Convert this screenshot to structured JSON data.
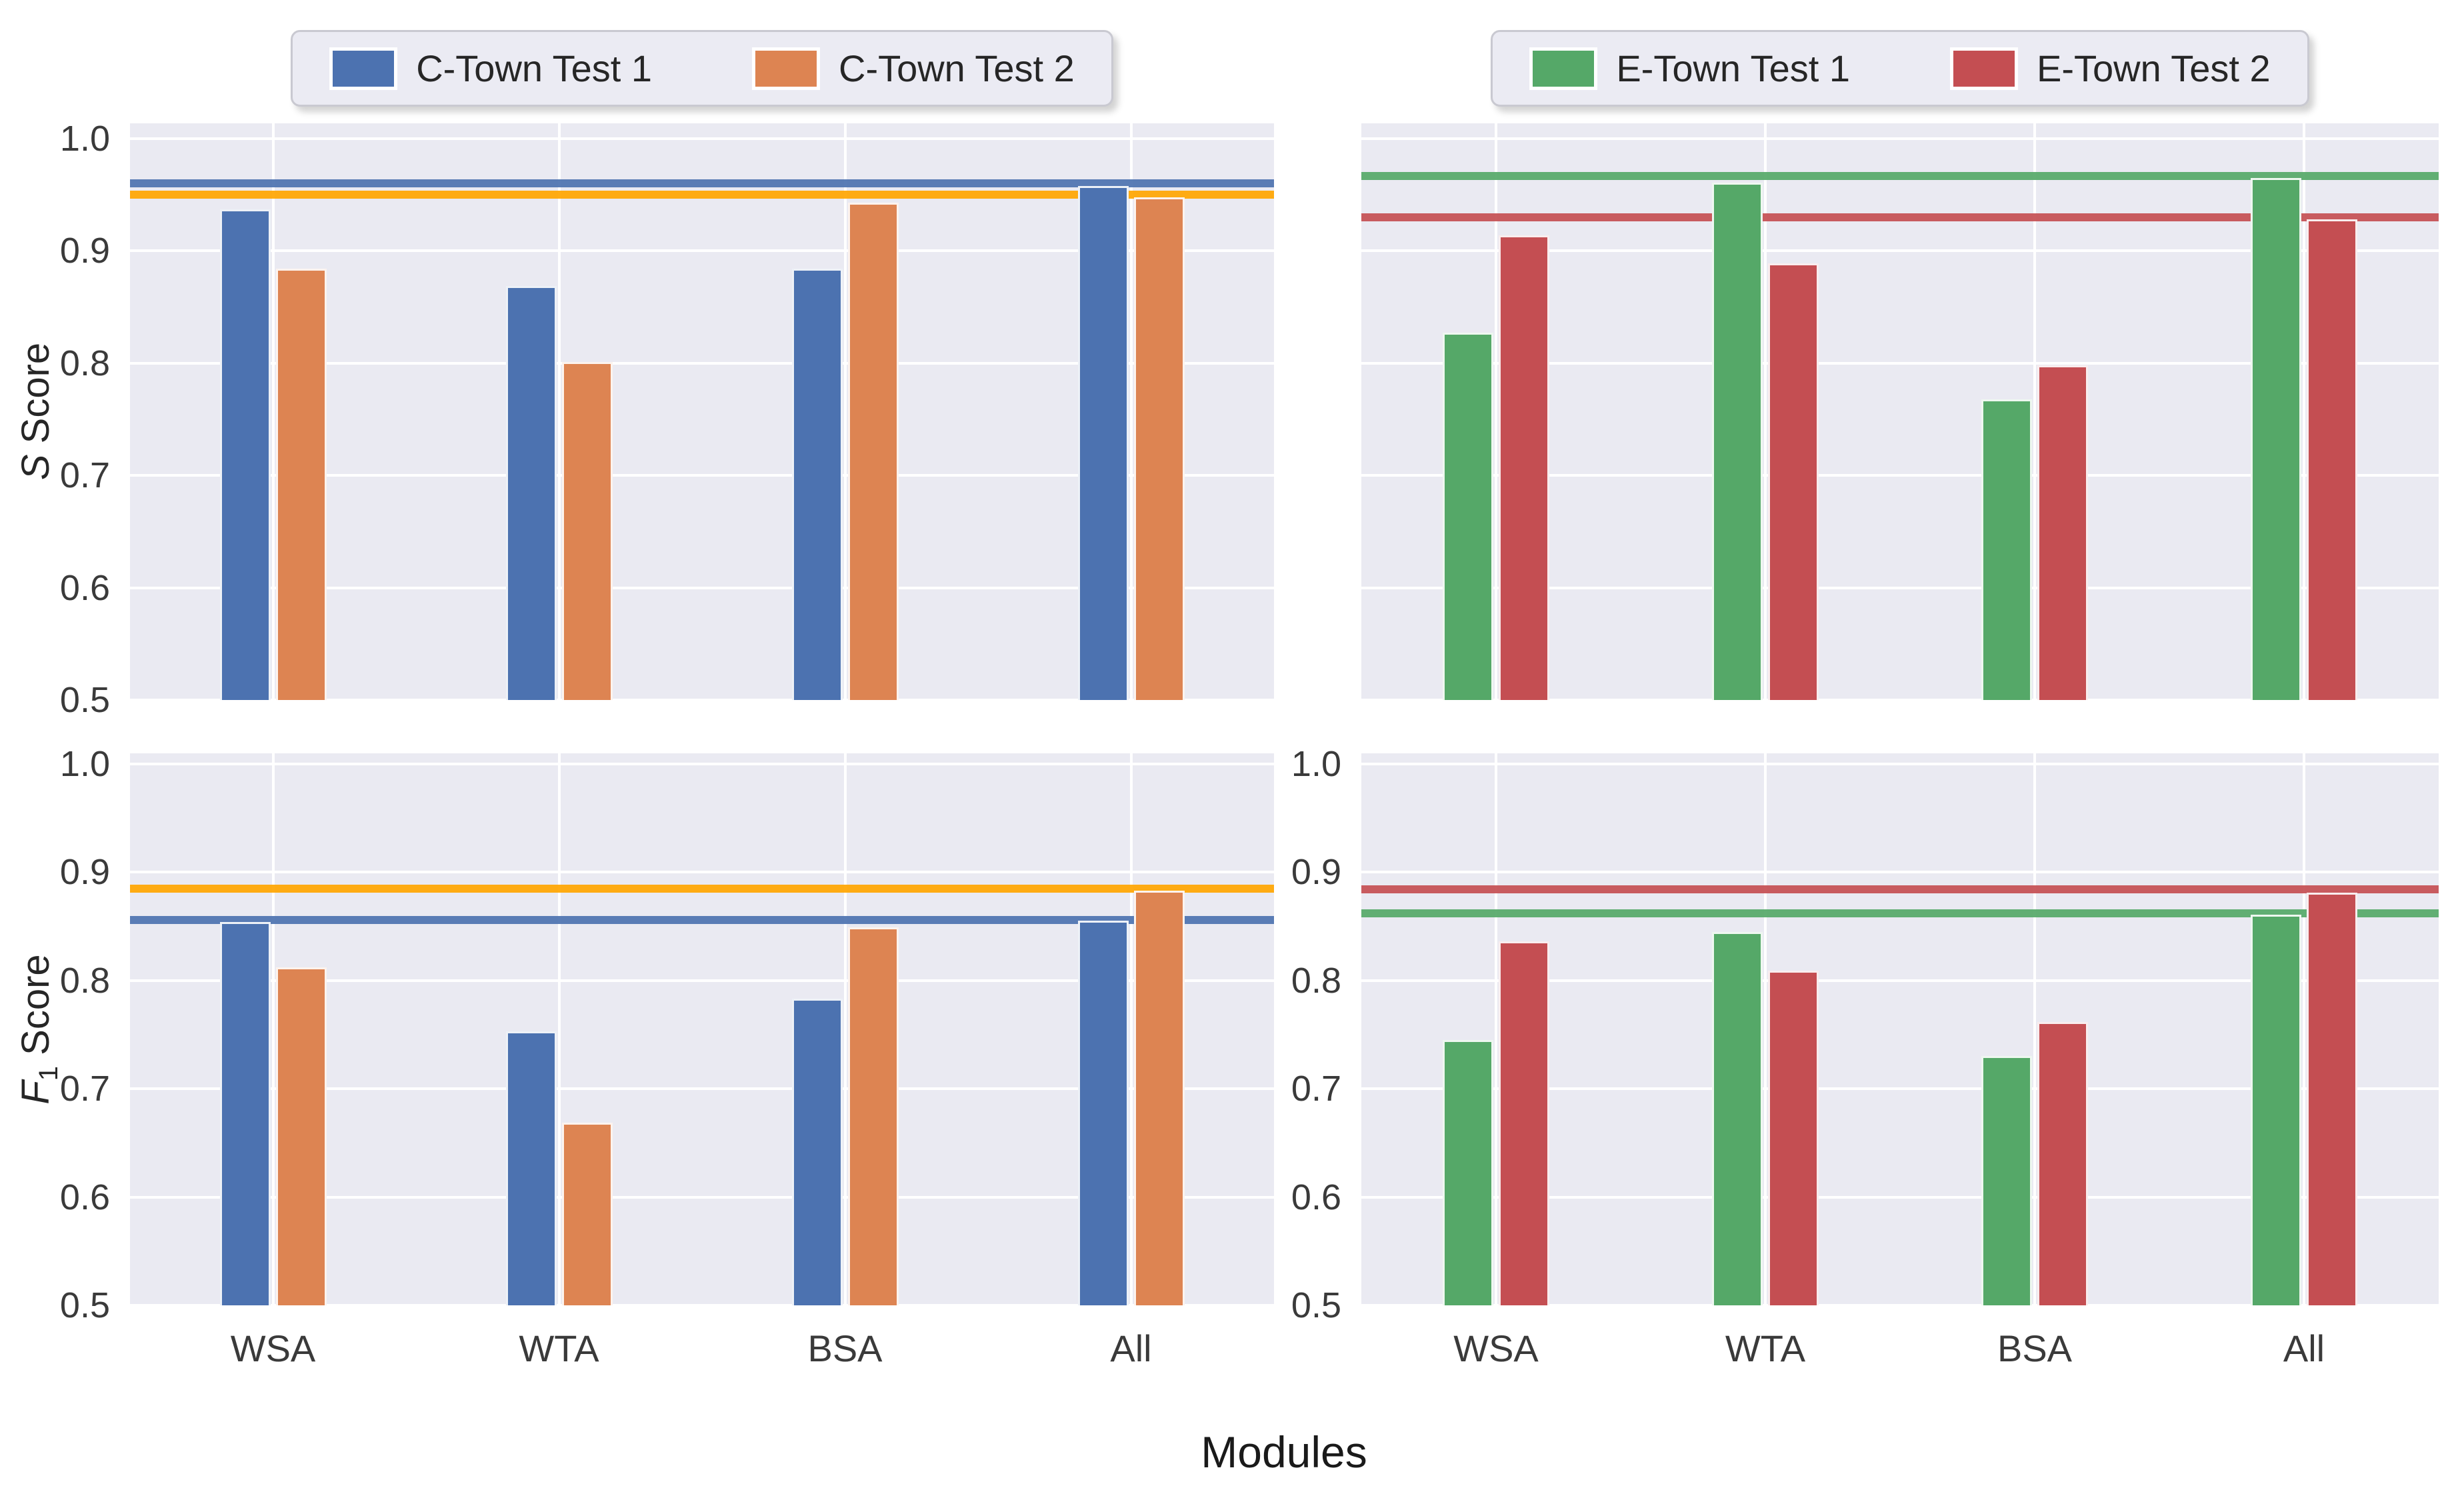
{
  "xlabel": "Modules",
  "ylabels": {
    "top": {
      "italic": "S",
      "sub": "",
      "rest": " Score"
    },
    "bottom": {
      "italic": "F",
      "sub": "1",
      "rest": " Score"
    }
  },
  "legends": [
    {
      "name": "c-town-legend",
      "items": [
        {
          "label": "C-Town Test 1",
          "color": "#4C72B0"
        },
        {
          "label": "C-Town Test 2",
          "color": "#DD8452"
        }
      ]
    },
    {
      "name": "e-town-legend",
      "items": [
        {
          "label": "E-Town Test 1",
          "color": "#55A868"
        },
        {
          "label": "E-Town Test 2",
          "color": "#C44E52"
        }
      ]
    }
  ],
  "colors": {
    "plot_background": "#EAEAF2",
    "grid": "#FFFFFF",
    "ctown_test1": "#4C72B0",
    "ctown_test2": "#DD8452",
    "etown_test1": "#55A868",
    "etown_test2": "#C44E52",
    "ctown_test2_avg_line": "#FFA500",
    "text": "#262626"
  },
  "chart_data": [
    {
      "type": "bar",
      "panel": "top-left",
      "title": "",
      "ylabel": "S Score",
      "categories": [
        "WSA",
        "WTA",
        "BSA",
        "All"
      ],
      "series": [
        {
          "name": "C-Town Test 1",
          "color": "#4C72B0",
          "values": [
            0.937,
            0.869,
            0.884,
            0.958
          ]
        },
        {
          "name": "C-Town Test 2",
          "color": "#DD8452",
          "values": [
            0.884,
            0.801,
            0.943,
            0.948
          ]
        }
      ],
      "avg_lines": [
        {
          "label": "C-Town Test 1 average",
          "value": 0.96,
          "color": "#4C72B0"
        },
        {
          "label": "C-Town Test 2 average",
          "value": 0.95,
          "color": "#FFA500"
        }
      ],
      "ylim": [
        0.5,
        1.0
      ],
      "yticks": [
        1.0,
        0.9,
        0.8,
        0.7,
        0.6,
        0.5
      ],
      "grid": true,
      "show_yticklabels": true,
      "show_xticklabels": false
    },
    {
      "type": "bar",
      "panel": "top-right",
      "title": "",
      "ylabel": "S Score",
      "categories": [
        "WSA",
        "WTA",
        "BSA",
        "All"
      ],
      "series": [
        {
          "name": "E-Town Test 1",
          "color": "#55A868",
          "values": [
            0.827,
            0.961,
            0.768,
            0.965
          ]
        },
        {
          "name": "E-Town Test 2",
          "color": "#C44E52",
          "values": [
            0.914,
            0.889,
            0.798,
            0.928
          ]
        }
      ],
      "avg_lines": [
        {
          "label": "E-Town Test 1 average",
          "value": 0.967,
          "color": "#55A868"
        },
        {
          "label": "E-Town Test 2 average",
          "value": 0.93,
          "color": "#C44E52"
        }
      ],
      "ylim": [
        0.5,
        1.0
      ],
      "yticks": [
        1.0,
        0.9,
        0.8,
        0.7,
        0.6,
        0.5
      ],
      "grid": true,
      "show_yticklabels": false,
      "show_xticklabels": false
    },
    {
      "type": "bar",
      "panel": "bottom-left",
      "title": "",
      "ylabel": "F1 Score",
      "categories": [
        "WSA",
        "WTA",
        "BSA",
        "All"
      ],
      "series": [
        {
          "name": "C-Town Test 1",
          "color": "#4C72B0",
          "values": [
            0.854,
            0.753,
            0.783,
            0.855
          ]
        },
        {
          "name": "C-Town Test 2",
          "color": "#DD8452",
          "values": [
            0.812,
            0.669,
            0.849,
            0.883
          ]
        }
      ],
      "avg_lines": [
        {
          "label": "C-Town Test 2 average",
          "value": 0.885,
          "color": "#FFA500"
        },
        {
          "label": "C-Town Test 1 average",
          "value": 0.856,
          "color": "#4C72B0"
        }
      ],
      "ylim": [
        0.5,
        1.0
      ],
      "yticks": [
        1.0,
        0.9,
        0.8,
        0.7,
        0.6,
        0.5
      ],
      "grid": true,
      "show_yticklabels": true,
      "show_xticklabels": true
    },
    {
      "type": "bar",
      "panel": "bottom-right",
      "title": "",
      "ylabel": "F1 Score",
      "categories": [
        "WSA",
        "WTA",
        "BSA",
        "All"
      ],
      "series": [
        {
          "name": "E-Town Test 1",
          "color": "#55A868",
          "values": [
            0.745,
            0.845,
            0.73,
            0.861
          ]
        },
        {
          "name": "E-Town Test 2",
          "color": "#C44E52",
          "values": [
            0.836,
            0.809,
            0.762,
            0.881
          ]
        }
      ],
      "avg_lines": [
        {
          "label": "E-Town Test 2 average",
          "value": 0.884,
          "color": "#C44E52"
        },
        {
          "label": "E-Town Test 1 average",
          "value": 0.862,
          "color": "#55A868"
        }
      ],
      "ylim": [
        0.5,
        1.0
      ],
      "yticks": [
        1.0,
        0.9,
        0.8,
        0.7,
        0.6,
        0.5
      ],
      "grid": true,
      "show_yticklabels": true,
      "show_xticklabels": true
    }
  ]
}
